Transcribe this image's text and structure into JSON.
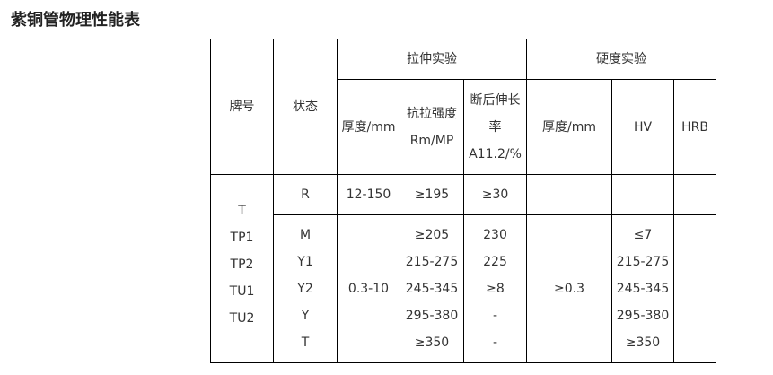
{
  "title": "紫铜管物理性能表",
  "header": {
    "grade": "牌号",
    "state": "状态",
    "tensile_group": "拉伸实验",
    "hardness_group": "硬度实验",
    "tensile_thickness": "厚度/mm",
    "tensile_strength": [
      "抗拉强度",
      "Rm/MP"
    ],
    "elongation": [
      "断后伸长",
      "率",
      "A11.2/%"
    ],
    "hardness_thickness": "厚度/mm",
    "hv": "HV",
    "hrb": "HRB"
  },
  "grades": [
    "T",
    "TP1",
    "TP2",
    "TU1",
    "TU2"
  ],
  "row_r": {
    "state": "R",
    "thickness": "12-150",
    "strength": "≥195",
    "elongation": "≥30",
    "h_thickness": "",
    "hv": "",
    "hrb": ""
  },
  "rows_other": {
    "states": [
      "M",
      "Y1",
      "Y2",
      "Y",
      "T"
    ],
    "thickness": "0.3-10",
    "strength": [
      "≥205",
      "215-275",
      "245-345",
      "295-380",
      "≥350"
    ],
    "elongation": [
      "230",
      "225",
      "≥8",
      "-",
      "-"
    ],
    "h_thickness": "≥0.3",
    "hv": [
      "≤7",
      "215-275",
      "245-345",
      "295-380",
      "≥350"
    ],
    "hrb": ""
  }
}
